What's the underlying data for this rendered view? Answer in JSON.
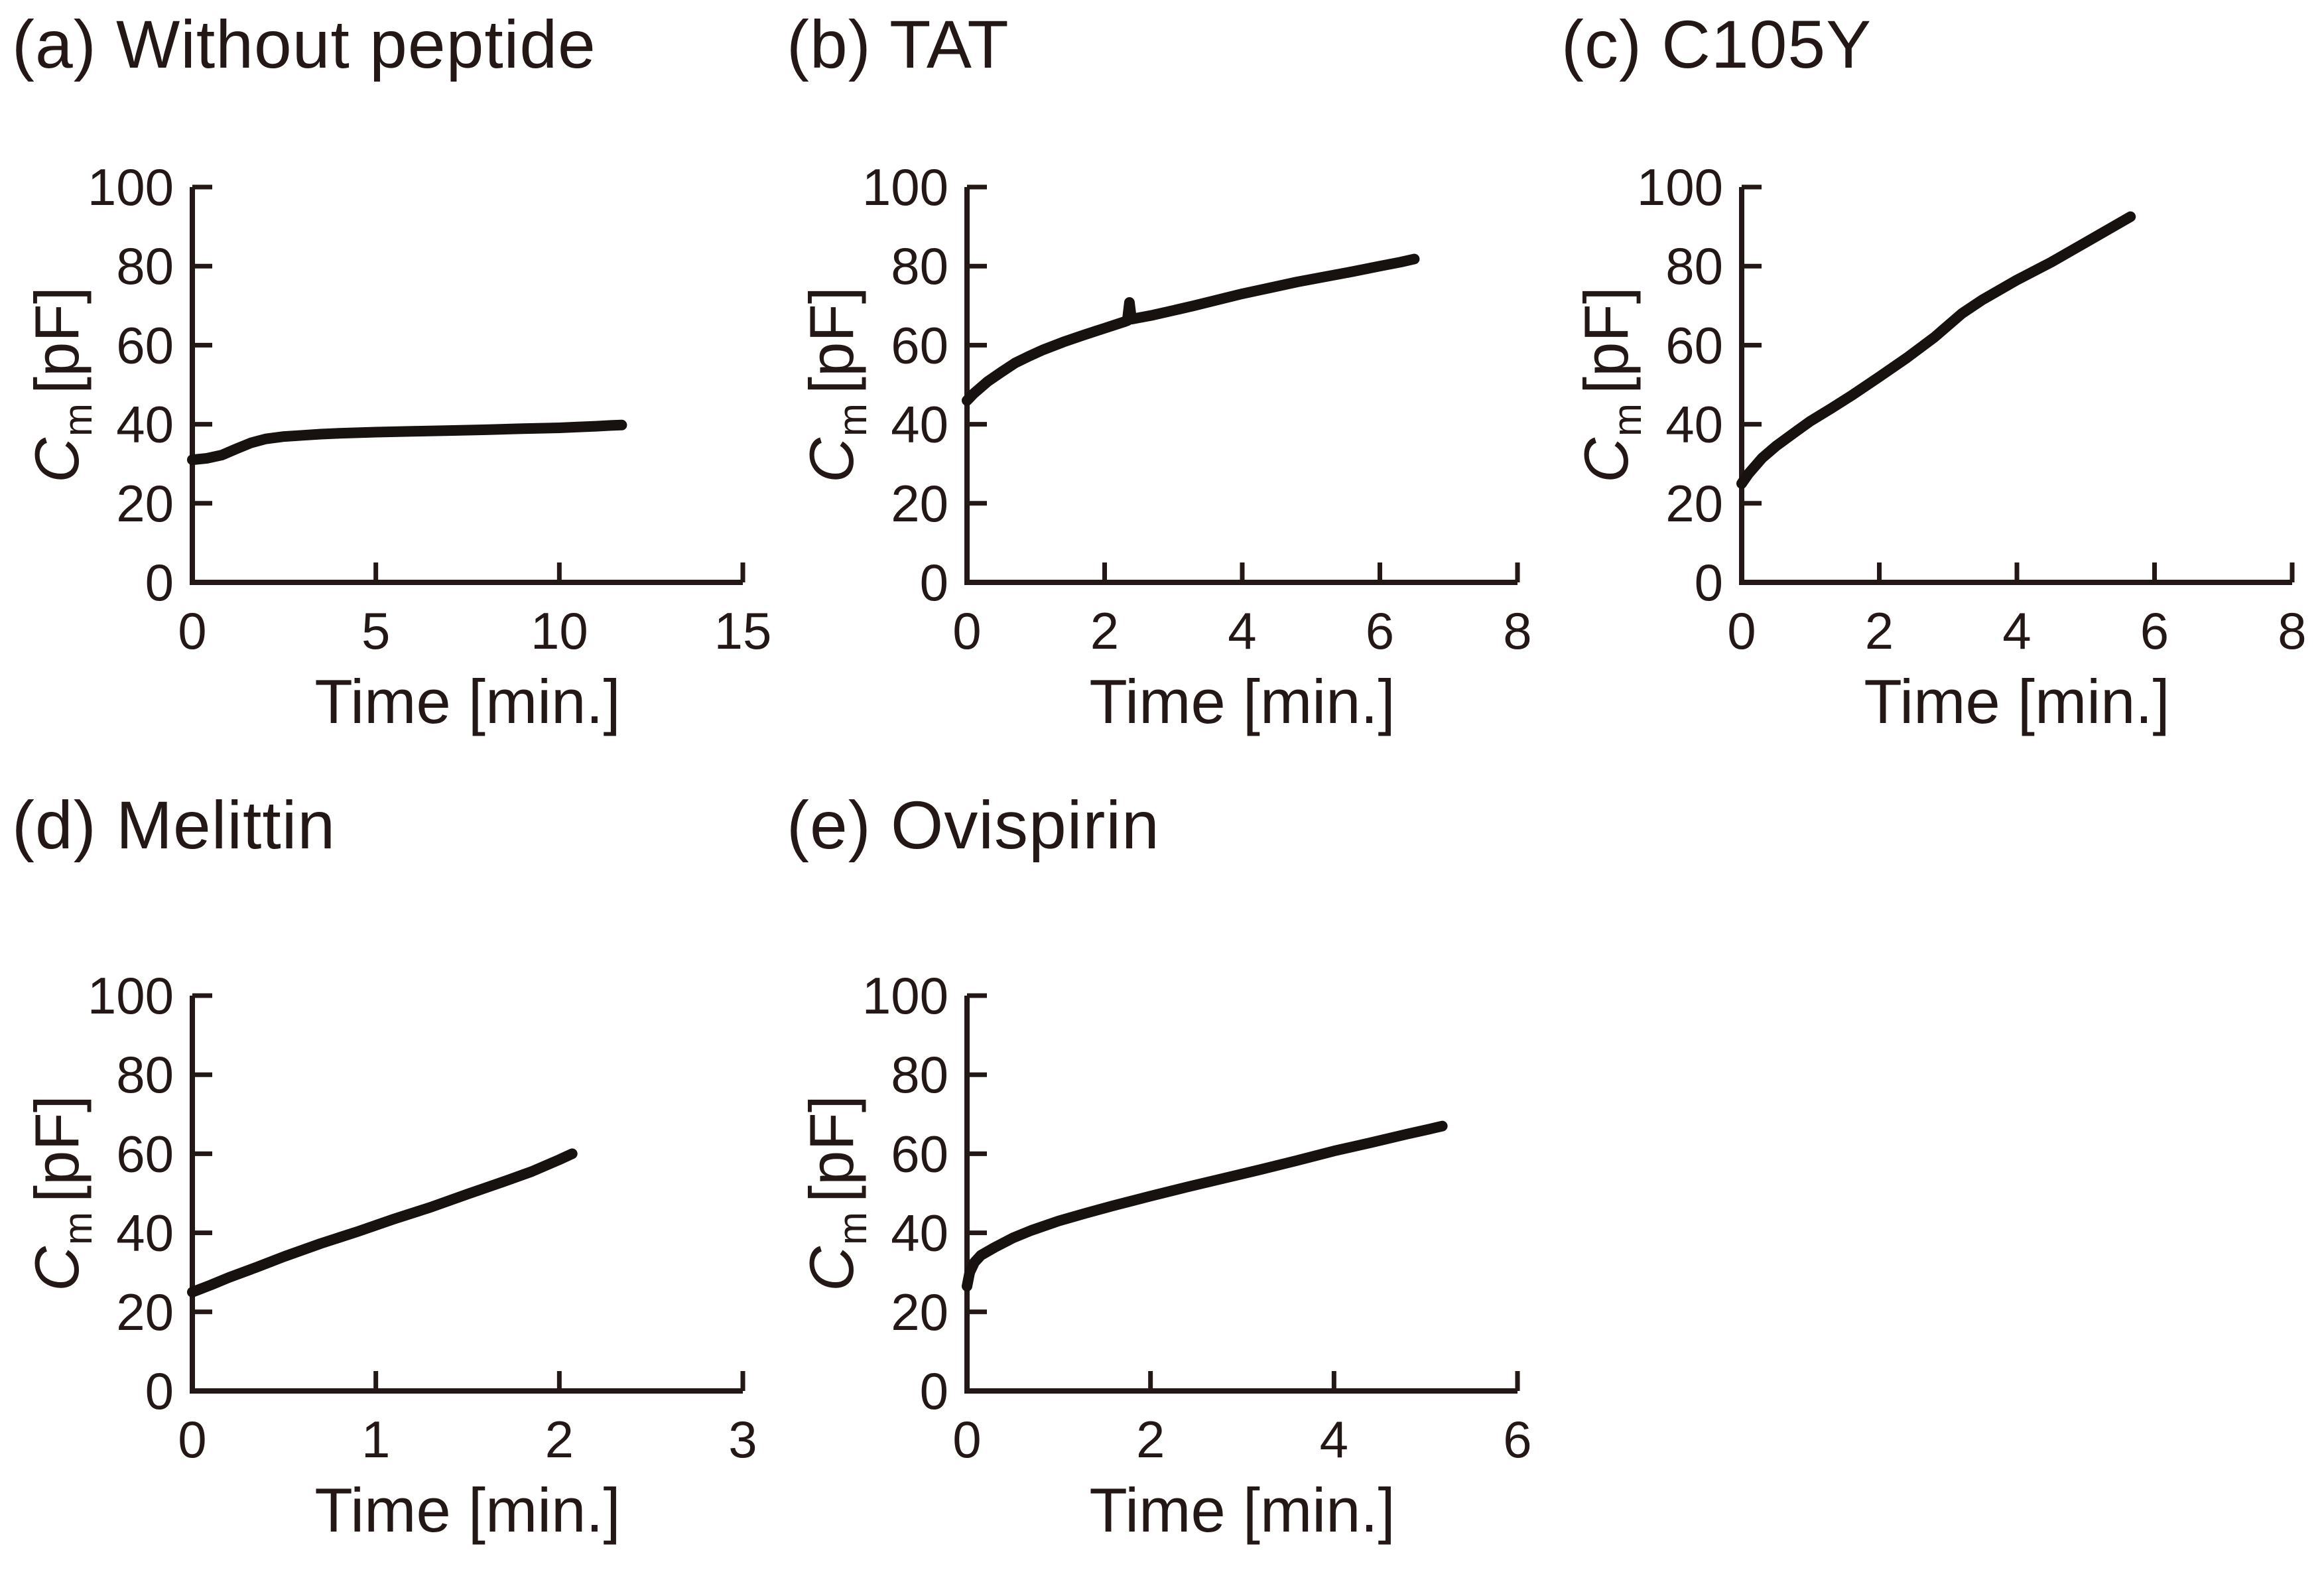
{
  "shared": {
    "ink_color": "#231815",
    "curve_color": "#171210",
    "xlabel": "Time [min.]",
    "ylabel_symbol": "C",
    "ylabel_subscript": "m",
    "ylabel_unit": "[pF]"
  },
  "chart_data": [
    {
      "type": "line",
      "title": "(a) Without peptide",
      "xlabel": "Time [min.]",
      "ylabel": "Cm [pF]",
      "xlim": [
        0,
        15
      ],
      "ylim": [
        0,
        100
      ],
      "xticks": [
        0,
        5,
        10,
        15
      ],
      "yticks": [
        0,
        20,
        40,
        60,
        80,
        100
      ],
      "grid": false,
      "legend": "none",
      "series": [
        {
          "name": "Cm without peptide",
          "points": [
            [
              0,
              31
            ],
            [
              0.4,
              31.4
            ],
            [
              0.8,
              32.2
            ],
            [
              1.2,
              33.8
            ],
            [
              1.6,
              35.3
            ],
            [
              2,
              36.3
            ],
            [
              2.5,
              36.9
            ],
            [
              3,
              37.2
            ],
            [
              3.5,
              37.5
            ],
            [
              4,
              37.7
            ],
            [
              5,
              38.0
            ],
            [
              6,
              38.2
            ],
            [
              7,
              38.4
            ],
            [
              8,
              38.6
            ],
            [
              9,
              38.9
            ],
            [
              10,
              39.1
            ],
            [
              10.5,
              39.3
            ],
            [
              11,
              39.5
            ],
            [
              11.4,
              39.7
            ],
            [
              11.7,
              39.8
            ]
          ]
        }
      ]
    },
    {
      "type": "line",
      "title": "(b) TAT",
      "xlabel": "Time [min.]",
      "ylabel": "Cm [pF]",
      "xlim": [
        0,
        8
      ],
      "ylim": [
        0,
        100
      ],
      "xticks": [
        0,
        2,
        4,
        6,
        8
      ],
      "yticks": [
        0,
        20,
        40,
        60,
        80,
        100
      ],
      "grid": false,
      "legend": "none",
      "series": [
        {
          "name": "Cm with TAT",
          "points": [
            [
              0,
              46
            ],
            [
              0.1,
              47.8
            ],
            [
              0.3,
              50.8
            ],
            [
              0.5,
              53.2
            ],
            [
              0.7,
              55.5
            ],
            [
              0.9,
              57.2
            ],
            [
              1.1,
              58.8
            ],
            [
              1.4,
              60.8
            ],
            [
              1.7,
              62.6
            ],
            [
              2,
              64.3
            ],
            [
              2.3,
              66.0
            ],
            [
              2.33,
              66.2
            ],
            [
              2.36,
              70.8
            ],
            [
              2.39,
              66.6
            ],
            [
              2.7,
              67.6
            ],
            [
              3,
              68.8
            ],
            [
              3.3,
              70.0
            ],
            [
              3.6,
              71.3
            ],
            [
              4,
              73.0
            ],
            [
              4.4,
              74.5
            ],
            [
              4.8,
              76.0
            ],
            [
              5.2,
              77.3
            ],
            [
              5.6,
              78.6
            ],
            [
              6,
              80.0
            ],
            [
              6.3,
              81.0
            ],
            [
              6.5,
              81.8
            ]
          ]
        }
      ]
    },
    {
      "type": "line",
      "title": "(c) C105Y",
      "xlabel": "Time [min.]",
      "ylabel": "Cm [pF]",
      "xlim": [
        0,
        8
      ],
      "ylim": [
        0,
        100
      ],
      "xticks": [
        0,
        2,
        4,
        6,
        8
      ],
      "yticks": [
        0,
        20,
        40,
        60,
        80,
        100
      ],
      "grid": false,
      "legend": "none",
      "series": [
        {
          "name": "Cm with C105Y",
          "points": [
            [
              0,
              25
            ],
            [
              0.1,
              27.5
            ],
            [
              0.3,
              31.5
            ],
            [
              0.5,
              34.5
            ],
            [
              0.8,
              38.3
            ],
            [
              1,
              40.8
            ],
            [
              1.3,
              44.0
            ],
            [
              1.6,
              47.3
            ],
            [
              2,
              52.0
            ],
            [
              2.4,
              56.8
            ],
            [
              2.8,
              62.0
            ],
            [
              3.2,
              68.0
            ],
            [
              3.5,
              71.5
            ],
            [
              4,
              76.5
            ],
            [
              4.5,
              81.0
            ],
            [
              5,
              86.0
            ],
            [
              5.3,
              89.0
            ],
            [
              5.65,
              92.5
            ]
          ]
        }
      ]
    },
    {
      "type": "line",
      "title": "(d) Melittin",
      "xlabel": "Time [min.]",
      "ylabel": "Cm [pF]",
      "xlim": [
        0,
        3
      ],
      "ylim": [
        0,
        100
      ],
      "xticks": [
        0,
        1,
        2,
        3
      ],
      "yticks": [
        0,
        20,
        40,
        60,
        80,
        100
      ],
      "grid": false,
      "legend": "none",
      "series": [
        {
          "name": "Cm with melittin",
          "points": [
            [
              0,
              25
            ],
            [
              0.1,
              26.8
            ],
            [
              0.2,
              28.7
            ],
            [
              0.35,
              31.3
            ],
            [
              0.5,
              34.0
            ],
            [
              0.7,
              37.3
            ],
            [
              0.9,
              40.3
            ],
            [
              1.1,
              43.5
            ],
            [
              1.3,
              46.5
            ],
            [
              1.5,
              49.8
            ],
            [
              1.7,
              53.0
            ],
            [
              1.85,
              55.5
            ],
            [
              2,
              58.5
            ],
            [
              2.07,
              60.0
            ]
          ]
        }
      ]
    },
    {
      "type": "line",
      "title": "(e) Ovispirin",
      "xlabel": "Time [min.]",
      "ylabel": "Cm [pF]",
      "xlim": [
        0,
        6
      ],
      "ylim": [
        0,
        100
      ],
      "xticks": [
        0,
        2,
        4,
        6
      ],
      "yticks": [
        0,
        20,
        40,
        60,
        80,
        100
      ],
      "grid": false,
      "legend": "none",
      "series": [
        {
          "name": "Cm with ovispirin",
          "points": [
            [
              0,
              26.5
            ],
            [
              0.03,
              30.0
            ],
            [
              0.08,
              32.5
            ],
            [
              0.15,
              34.3
            ],
            [
              0.3,
              36.3
            ],
            [
              0.5,
              38.7
            ],
            [
              0.7,
              40.6
            ],
            [
              1,
              43.0
            ],
            [
              1.3,
              45.0
            ],
            [
              1.6,
              46.9
            ],
            [
              2,
              49.3
            ],
            [
              2.4,
              51.6
            ],
            [
              2.8,
              53.8
            ],
            [
              3.2,
              56.0
            ],
            [
              3.6,
              58.3
            ],
            [
              4,
              60.7
            ],
            [
              4.4,
              62.8
            ],
            [
              4.8,
              65.0
            ],
            [
              5.05,
              66.3
            ],
            [
              5.18,
              67.0
            ]
          ]
        }
      ]
    }
  ]
}
